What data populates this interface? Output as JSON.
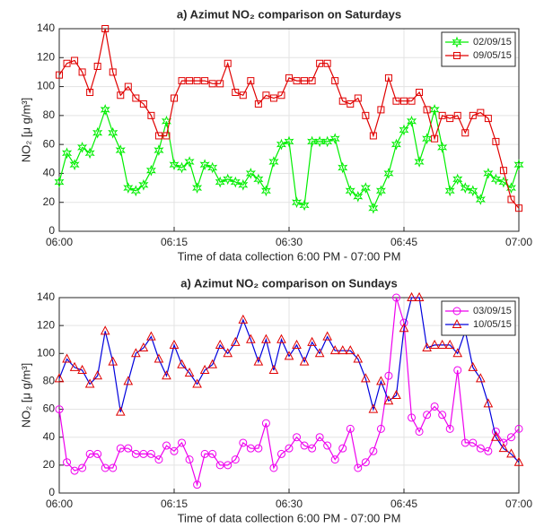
{
  "chart_data": [
    {
      "type": "line",
      "title": "a) Azimut NO₂ comparison on Saturdays",
      "x_label": "Time of data collection 6:00 PM - 07:00 PM",
      "y_label": "NO₂ [μ g/m³]",
      "x": [
        0,
        1,
        2,
        3,
        4,
        5,
        6,
        7,
        8,
        9,
        10,
        11,
        12,
        13,
        14,
        15,
        16,
        17,
        18,
        19,
        20,
        21,
        22,
        23,
        24,
        25,
        26,
        27,
        28,
        29,
        30,
        31,
        32,
        33,
        34,
        35,
        36,
        37,
        38,
        39,
        40,
        41,
        42,
        43,
        44,
        45,
        46,
        47,
        48,
        49,
        50,
        51,
        52,
        53,
        54,
        55,
        56,
        57,
        58,
        59,
        60
      ],
      "xlim": [
        0,
        60
      ],
      "xticks": [
        {
          "value": 0,
          "label": "06:00"
        },
        {
          "value": 15,
          "label": "06:15"
        },
        {
          "value": 30,
          "label": "06:30"
        },
        {
          "value": 45,
          "label": "06:45"
        },
        {
          "value": 60,
          "label": "07:00"
        }
      ],
      "ylim": [
        0,
        140
      ],
      "yticks": [
        0,
        20,
        40,
        60,
        80,
        100,
        120,
        140
      ],
      "grid": true,
      "legend": "upper right",
      "series": [
        {
          "name": "02/09/15",
          "color": "#00ee00",
          "marker": "hexagram",
          "marker_color": "#00ee00",
          "values": [
            34,
            54,
            46,
            58,
            54,
            68,
            84,
            68,
            56,
            30,
            28,
            32,
            42,
            56,
            76,
            46,
            44,
            48,
            30,
            46,
            44,
            34,
            36,
            34,
            32,
            40,
            36,
            28,
            48,
            60,
            62,
            20,
            18,
            62,
            62,
            62,
            64,
            44,
            28,
            24,
            30,
            16,
            28,
            40,
            60,
            70,
            76,
            48,
            64,
            84,
            58,
            28,
            36,
            30,
            28,
            22,
            40,
            36,
            34,
            30,
            46
          ]
        },
        {
          "name": "09/05/15",
          "color": "#e00000",
          "marker": "square",
          "marker_color": "#e00000",
          "values": [
            108,
            116,
            118,
            110,
            96,
            114,
            140,
            110,
            94,
            100,
            92,
            88,
            80,
            66,
            66,
            92,
            104,
            104,
            104,
            104,
            102,
            102,
            116,
            96,
            94,
            104,
            88,
            94,
            92,
            94,
            106,
            104,
            104,
            104,
            116,
            116,
            104,
            90,
            88,
            92,
            80,
            66,
            84,
            106,
            90,
            90,
            90,
            96,
            84,
            64,
            80,
            78,
            80,
            68,
            80,
            82,
            78,
            62,
            42,
            22,
            16
          ]
        }
      ]
    },
    {
      "type": "line",
      "title": "a) Azimut NO₂ comparison on Sundays",
      "x_label": "Time of data collection 6:00 PM - 07:00 PM",
      "y_label": "NO₂ [μ g/m³]",
      "x": [
        0,
        1,
        2,
        3,
        4,
        5,
        6,
        7,
        8,
        9,
        10,
        11,
        12,
        13,
        14,
        15,
        16,
        17,
        18,
        19,
        20,
        21,
        22,
        23,
        24,
        25,
        26,
        27,
        28,
        29,
        30,
        31,
        32,
        33,
        34,
        35,
        36,
        37,
        38,
        39,
        40,
        41,
        42,
        43,
        44,
        45,
        46,
        47,
        48,
        49,
        50,
        51,
        52,
        53,
        54,
        55,
        56,
        57,
        58,
        59,
        60
      ],
      "xlim": [
        0,
        60
      ],
      "xticks": [
        {
          "value": 0,
          "label": "06:00"
        },
        {
          "value": 15,
          "label": "06:15"
        },
        {
          "value": 30,
          "label": "06:30"
        },
        {
          "value": 45,
          "label": "06:45"
        },
        {
          "value": 60,
          "label": "07:00"
        }
      ],
      "ylim": [
        0,
        140
      ],
      "yticks": [
        0,
        20,
        40,
        60,
        80,
        100,
        120,
        140
      ],
      "grid": true,
      "legend": "upper right",
      "series": [
        {
          "name": "03/09/15",
          "color": "#ee00ee",
          "marker": "circle",
          "marker_color": "#ee00ee",
          "values": [
            60,
            22,
            16,
            18,
            28,
            28,
            18,
            18,
            32,
            32,
            28,
            28,
            28,
            24,
            34,
            30,
            36,
            24,
            6,
            28,
            28,
            20,
            20,
            24,
            36,
            32,
            32,
            50,
            18,
            28,
            32,
            40,
            34,
            32,
            40,
            34,
            24,
            32,
            46,
            18,
            22,
            30,
            46,
            84,
            140,
            122,
            54,
            44,
            56,
            62,
            56,
            46,
            88,
            36,
            36,
            32,
            30,
            44,
            36,
            40,
            46
          ]
        },
        {
          "name": "10/05/15",
          "color": "#0000dd",
          "marker": "triangle",
          "marker_color": "#e00000",
          "values": [
            82,
            96,
            90,
            88,
            78,
            84,
            116,
            94,
            58,
            80,
            100,
            104,
            112,
            96,
            84,
            106,
            92,
            86,
            78,
            88,
            92,
            106,
            100,
            108,
            124,
            110,
            94,
            110,
            88,
            110,
            98,
            106,
            94,
            108,
            100,
            112,
            102,
            102,
            102,
            96,
            82,
            60,
            80,
            66,
            70,
            118,
            140,
            140,
            104,
            106,
            106,
            106,
            100,
            116,
            90,
            82,
            64,
            40,
            32,
            28,
            22
          ]
        }
      ]
    }
  ]
}
